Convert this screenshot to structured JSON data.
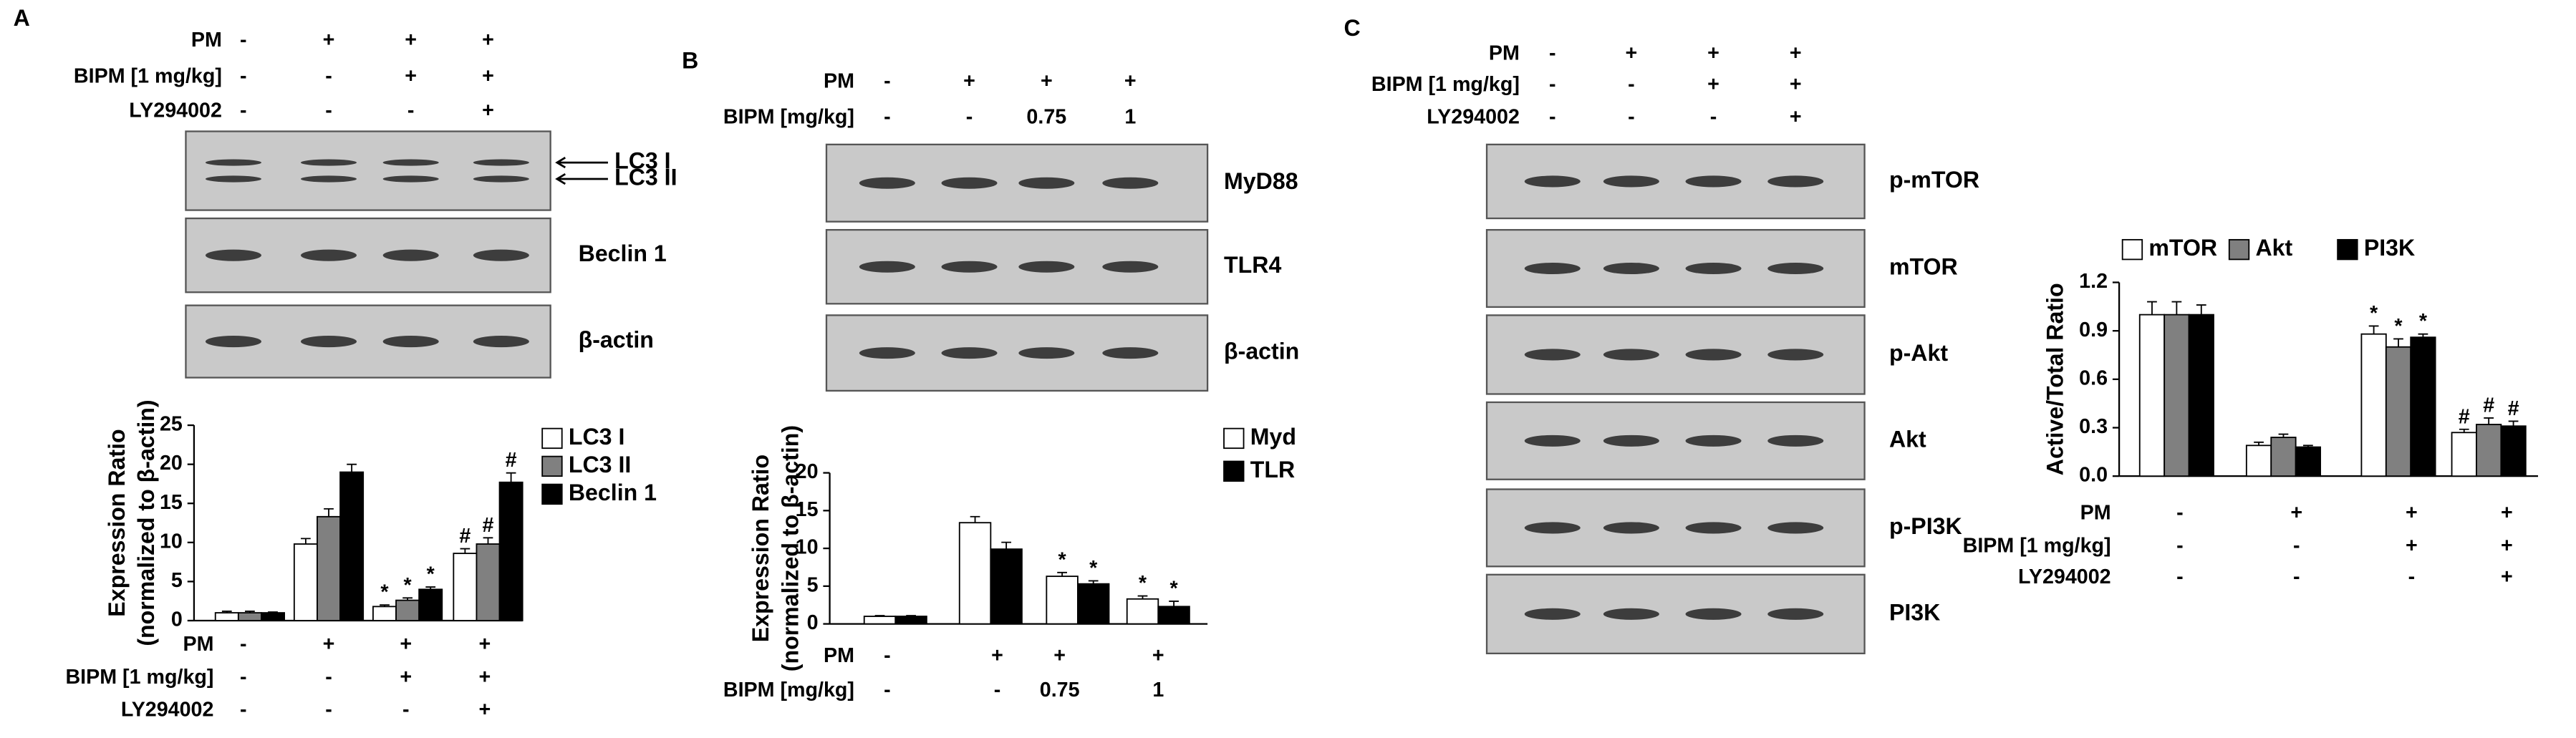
{
  "chart_data": [
    {
      "type": "bar",
      "panel": "A",
      "blots": [
        [
          "LC3 I",
          "LC3 II"
        ],
        [
          "Beclin 1"
        ],
        [
          "β-actin"
        ]
      ],
      "conditions": [
        {
          "label": "PM",
          "values": [
            "-",
            "+",
            "+",
            "+"
          ]
        },
        {
          "label": "BIPM [1 mg/kg]",
          "values": [
            "-",
            "-",
            "+",
            "+"
          ]
        },
        {
          "label": "LY294002",
          "values": [
            "-",
            "-",
            "-",
            "+"
          ]
        }
      ],
      "y_label": [
        "Expression Ratio",
        "(normalized to β-actin)"
      ],
      "ylim": [
        0,
        25
      ],
      "yticks": [
        0,
        5,
        10,
        15,
        20,
        25
      ],
      "legend": "right",
      "series": [
        {
          "name": "LC3 I",
          "color": "#ffffff",
          "values": [
            1,
            9.8,
            1.8,
            8.6
          ],
          "errors": [
            0.2,
            0.7,
            0.2,
            0.6
          ],
          "significance": [
            null,
            null,
            "*",
            "#"
          ]
        },
        {
          "name": "LC3 II",
          "color": "#808080",
          "values": [
            1,
            13.3,
            2.6,
            9.8
          ],
          "errors": [
            0.2,
            1.0,
            0.3,
            0.8
          ],
          "significance": [
            null,
            null,
            "*",
            "#"
          ]
        },
        {
          "name": "Beclin 1",
          "color": "#000000",
          "values": [
            1,
            19,
            4.0,
            17.7
          ],
          "errors": [
            0.1,
            1.0,
            0.3,
            1.2
          ],
          "significance": [
            null,
            null,
            "*",
            "#"
          ]
        }
      ]
    },
    {
      "type": "bar",
      "panel": "B",
      "blots": [
        [
          "MyD88"
        ],
        [
          "TLR4"
        ],
        [
          "β-actin"
        ]
      ],
      "conditions": [
        {
          "label": "PM",
          "values": [
            "-",
            "+",
            "+",
            "+"
          ]
        },
        {
          "label": "BIPM [mg/kg]",
          "values": [
            "-",
            "-",
            "0.75",
            "1"
          ]
        }
      ],
      "y_label": [
        "Expression Ratio",
        "(normalized to β-actin)"
      ],
      "ylim": [
        0,
        20
      ],
      "yticks": [
        0,
        5,
        10,
        15,
        20
      ],
      "legend": "right",
      "series": [
        {
          "name": "Myd",
          "color": "#ffffff",
          "values": [
            1,
            13.4,
            6.3,
            3.3
          ],
          "errors": [
            0.1,
            0.8,
            0.5,
            0.4
          ],
          "significance": [
            null,
            null,
            "*",
            "*"
          ]
        },
        {
          "name": "TLR",
          "color": "#000000",
          "values": [
            1,
            9.9,
            5.3,
            2.3
          ],
          "errors": [
            0.1,
            0.9,
            0.4,
            0.7
          ],
          "significance": [
            null,
            null,
            "*",
            "*"
          ]
        }
      ]
    },
    {
      "type": "bar",
      "panel": "C",
      "blots": [
        [
          "p-mTOR"
        ],
        [
          "mTOR"
        ],
        [
          "p-Akt"
        ],
        [
          "Akt"
        ],
        [
          "p-PI3K"
        ],
        [
          "PI3K"
        ]
      ],
      "conditions": [
        {
          "label": "PM",
          "values": [
            "-",
            "+",
            "+",
            "+"
          ]
        },
        {
          "label": "BIPM [1 mg/kg]",
          "values": [
            "-",
            "-",
            "+",
            "+"
          ]
        },
        {
          "label": "LY294002",
          "values": [
            "-",
            "-",
            "-",
            "+"
          ]
        }
      ],
      "y_label": [
        "Active/Total Ratio"
      ],
      "ylim": [
        0,
        1.2
      ],
      "yticks": [
        {
          "value": 0,
          "label": "0.0"
        },
        0.3,
        0.6,
        0.9,
        1.2
      ],
      "legend": "top",
      "series": [
        {
          "name": "mTOR",
          "color": "#ffffff",
          "values": [
            1.0,
            0.19,
            0.88,
            0.27
          ],
          "errors": [
            0.08,
            0.02,
            0.05,
            0.02
          ],
          "significance": [
            null,
            null,
            "*",
            "#"
          ]
        },
        {
          "name": "Akt",
          "color": "#808080",
          "values": [
            1.0,
            0.24,
            0.8,
            0.32
          ],
          "errors": [
            0.08,
            0.02,
            0.05,
            0.04
          ],
          "significance": [
            null,
            null,
            "*",
            "#"
          ]
        },
        {
          "name": "PI3K",
          "color": "#000000",
          "values": [
            1.0,
            0.18,
            0.86,
            0.31
          ],
          "errors": [
            0.06,
            0.01,
            0.02,
            0.03
          ],
          "significance": [
            null,
            null,
            "*",
            "#"
          ]
        }
      ]
    }
  ]
}
